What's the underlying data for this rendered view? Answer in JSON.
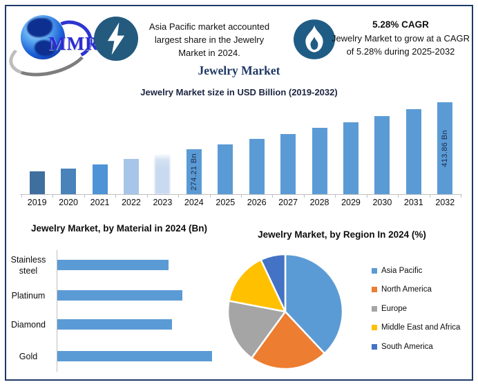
{
  "header": {
    "logo": {
      "text": "MMR",
      "icon": "globe-swoosh-logo"
    },
    "stat_left": {
      "icon": "lightning-icon",
      "text": "Asia Pacific market accounted largest share in the Jewelry Market in 2024."
    },
    "stat_right": {
      "icon": "flame-icon",
      "title": "5.28% CAGR",
      "text": "Jewelry Market to grow at a CAGR of 5.28% during 2025-2032"
    }
  },
  "page_title": "Jewelry Market",
  "colors": {
    "accent_blue": "#5B9BD5",
    "border_navy": "#1E3A66",
    "icon_circle": "#215C82",
    "title_navy": "#1F3864"
  },
  "chart_data": [
    {
      "type": "bar",
      "title": "Jewelry Market size in USD Billion (2019-2032)",
      "ylabel": "USD Billion",
      "categories": [
        "2019",
        "2020",
        "2021",
        "2022",
        "2023",
        "2024",
        "2025",
        "2026",
        "2027",
        "2028",
        "2029",
        "2030",
        "2031",
        "2032"
      ],
      "values": [
        208,
        216,
        228,
        245,
        259,
        274.21,
        288.69,
        303.93,
        319.98,
        336.87,
        354.66,
        373.38,
        393.1,
        413.86
      ],
      "point_labels": [
        "",
        "",
        "",
        "",
        "",
        "274.21 Bn",
        "",
        "",
        "",
        "",
        "",
        "",
        "",
        "413.86 Bn"
      ],
      "ylim": [
        140,
        413.86
      ],
      "grid": false,
      "colors": [
        "#3F6F9E",
        "#4A82BA",
        "#4E93D6",
        "#A6C5E8",
        "#C9DAF0",
        "#5B9BD5",
        "#5B9BD5",
        "#5B9BD5",
        "#5B9BD5",
        "#5B9BD5",
        "#5B9BD5",
        "#5B9BD5",
        "#5B9BD5",
        "#5B9BD5"
      ],
      "faded_bar_index": 4
    },
    {
      "type": "bar",
      "orientation": "horizontal",
      "title": "Jewelry Market, by Material in 2024 (Bn)",
      "categories": [
        "Stainless steel",
        "Platinum",
        "Diamond",
        "Gold"
      ],
      "values": [
        72,
        81,
        74,
        100
      ],
      "value_note": "relative scale, no axis labels shown",
      "bar_color": "#5B9BD5",
      "grid": false
    },
    {
      "type": "pie",
      "title": "Jewelry Market, by Region In 2024 (%)",
      "legend_position": "right",
      "slices": [
        {
          "label": "Asia Pacific",
          "value": 38,
          "color": "#5B9BD5"
        },
        {
          "label": "North America",
          "value": 22,
          "color": "#ED7D31"
        },
        {
          "label": "Europe",
          "value": 18,
          "color": "#A5A5A5"
        },
        {
          "label": "Middle East and Africa",
          "value": 15,
          "color": "#FFC000"
        },
        {
          "label": "South America",
          "value": 7,
          "color": "#4472C4"
        }
      ]
    }
  ]
}
